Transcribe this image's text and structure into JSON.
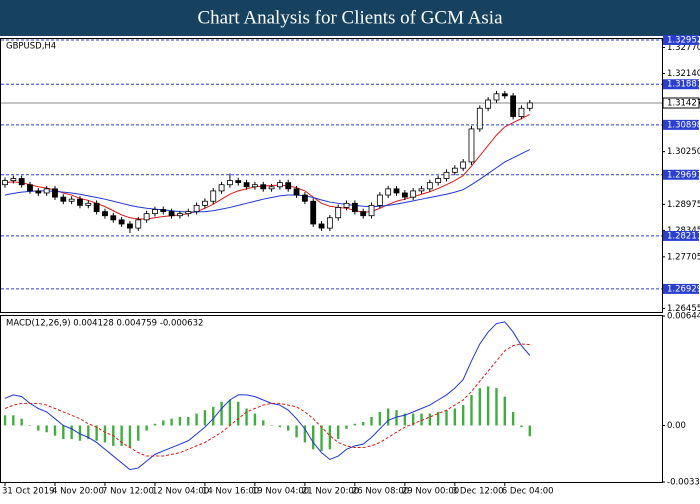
{
  "header": {
    "title": "Chart Analysis for Clients of GCM Asia"
  },
  "chart_data": [
    {
      "type": "candlestick",
      "label": "GBPUSD,H4",
      "categories": [
        "31 Oct 2019",
        null,
        null,
        null,
        null,
        null,
        "4 Nov 20:00",
        null,
        null,
        null,
        null,
        null,
        "7 Nov 12:00",
        null,
        null,
        null,
        null,
        null,
        "12 Nov 04:00",
        null,
        null,
        null,
        null,
        null,
        "14 Nov 16:00",
        null,
        null,
        null,
        null,
        null,
        "19 Nov 04:00",
        null,
        null,
        null,
        null,
        null,
        "21 Nov 20:00",
        null,
        null,
        null,
        null,
        null,
        "26 Nov 08:00",
        null,
        null,
        null,
        null,
        null,
        "29 Nov 00:00",
        null,
        null,
        null,
        null,
        null,
        "3 Dec 12:00",
        null,
        null,
        null,
        null,
        null,
        "6 Dec 04:00",
        null,
        null,
        null
      ],
      "open": [
        1.2945,
        1.2955,
        1.296,
        1.2945,
        1.293,
        1.2925,
        1.2935,
        1.2915,
        1.2905,
        1.291,
        1.2895,
        1.29,
        1.288,
        1.287,
        1.286,
        1.285,
        1.284,
        1.286,
        1.2875,
        1.2885,
        1.288,
        1.287,
        1.2875,
        1.288,
        1.2895,
        1.2905,
        1.293,
        1.2945,
        1.2955,
        1.295,
        1.294,
        1.2945,
        1.2935,
        1.294,
        1.295,
        1.2935,
        1.292,
        1.2905,
        1.285,
        1.284,
        1.2865,
        1.289,
        1.29,
        1.288,
        1.287,
        1.2895,
        1.292,
        1.2935,
        1.2925,
        1.2915,
        1.293,
        1.2935,
        1.295,
        1.296,
        1.2975,
        1.2985,
        1.3,
        1.308,
        1.313,
        1.315,
        1.3165,
        1.316,
        1.311,
        1.313
      ],
      "high": [
        1.2962,
        1.2967,
        1.2967,
        1.2952,
        1.2937,
        1.2942,
        1.2942,
        1.2922,
        1.2917,
        1.2917,
        1.2907,
        1.2907,
        1.2887,
        1.2877,
        1.2867,
        1.2857,
        1.2867,
        1.2882,
        1.2892,
        1.2892,
        1.2887,
        1.2882,
        1.2887,
        1.2902,
        1.2912,
        1.2937,
        1.2952,
        1.2972,
        1.2962,
        1.2957,
        1.2952,
        1.2952,
        1.2947,
        1.2957,
        1.2957,
        1.2942,
        1.2927,
        1.2912,
        1.2857,
        1.2872,
        1.2897,
        1.2907,
        1.2907,
        1.2887,
        1.2902,
        1.2927,
        1.2942,
        1.2942,
        1.2932,
        1.2937,
        1.2942,
        1.2957,
        1.2967,
        1.2982,
        1.2992,
        1.3007,
        1.3087,
        1.3137,
        1.3157,
        1.3172,
        1.3172,
        1.3167,
        1.3137,
        1.315
      ],
      "low": [
        1.2938,
        1.2948,
        1.2938,
        1.2923,
        1.2918,
        1.2918,
        1.2908,
        1.2898,
        1.2898,
        1.2888,
        1.2888,
        1.2873,
        1.2863,
        1.2853,
        1.2843,
        1.2828,
        1.2833,
        1.2853,
        1.2868,
        1.2873,
        1.2863,
        1.2863,
        1.2868,
        1.2873,
        1.2888,
        1.2898,
        1.2923,
        1.2938,
        1.2943,
        1.2933,
        1.2933,
        1.2928,
        1.2928,
        1.2933,
        1.2928,
        1.2913,
        1.2898,
        1.2843,
        1.2833,
        1.2833,
        1.2858,
        1.2883,
        1.2873,
        1.2863,
        1.2863,
        1.2888,
        1.2913,
        1.2918,
        1.2908,
        1.2908,
        1.2923,
        1.2928,
        1.2943,
        1.2953,
        1.2968,
        1.2978,
        1.2993,
        1.3073,
        1.3123,
        1.3143,
        1.3153,
        1.3103,
        1.3103,
        1.3123
      ],
      "close": [
        1.2955,
        1.296,
        1.2945,
        1.293,
        1.2925,
        1.2935,
        1.2915,
        1.2905,
        1.291,
        1.2895,
        1.29,
        1.288,
        1.287,
        1.286,
        1.285,
        1.284,
        1.286,
        1.2875,
        1.2885,
        1.288,
        1.287,
        1.2875,
        1.288,
        1.2895,
        1.2905,
        1.293,
        1.2945,
        1.2955,
        1.295,
        1.294,
        1.2945,
        1.2935,
        1.294,
        1.295,
        1.2935,
        1.292,
        1.2905,
        1.285,
        1.284,
        1.2865,
        1.289,
        1.29,
        1.288,
        1.287,
        1.2895,
        1.292,
        1.2935,
        1.2925,
        1.2915,
        1.293,
        1.2935,
        1.295,
        1.296,
        1.2975,
        1.2985,
        1.3,
        1.308,
        1.313,
        1.315,
        1.3165,
        1.316,
        1.311,
        1.313,
        1.3143
      ],
      "series": [
        {
          "color": "#e01818",
          "values": [
            1.295,
            1.2952,
            1.295,
            1.2945,
            1.294,
            1.2937,
            1.2932,
            1.2925,
            1.292,
            1.2912,
            1.2907,
            1.29,
            1.2892,
            1.2882,
            1.2872,
            1.2865,
            1.2862,
            1.2862,
            1.2865,
            1.2868,
            1.287,
            1.2872,
            1.2875,
            1.288,
            1.2888,
            1.2898,
            1.291,
            1.2922,
            1.293,
            1.2935,
            1.294,
            1.2942,
            1.2943,
            1.2944,
            1.2942,
            1.2938,
            1.293,
            1.2915,
            1.29,
            1.2893,
            1.289,
            1.2888,
            1.2883,
            1.2878,
            1.288,
            1.2888,
            1.2897,
            1.2905,
            1.291,
            1.2916,
            1.2922,
            1.2928,
            1.2936,
            1.2945,
            1.2955,
            1.2967,
            1.299,
            1.3015,
            1.304,
            1.3065,
            1.3085,
            1.3095,
            1.3105,
            1.3115
          ]
        },
        {
          "color": "#1f35d8",
          "values": [
            1.292,
            1.2924,
            1.2927,
            1.2929,
            1.293,
            1.293,
            1.2929,
            1.2927,
            1.2925,
            1.2922,
            1.2918,
            1.2914,
            1.291,
            1.2905,
            1.29,
            1.2895,
            1.2891,
            1.2888,
            1.2886,
            1.2884,
            1.2882,
            1.288,
            1.2879,
            1.2879,
            1.288,
            1.2882,
            1.2886,
            1.289,
            1.2895,
            1.29,
            1.2905,
            1.291,
            1.2914,
            1.2918,
            1.292,
            1.292,
            1.2918,
            1.2914,
            1.2908,
            1.2903,
            1.29,
            1.2897,
            1.2895,
            1.2893,
            1.2892,
            1.2893,
            1.2895,
            1.2898,
            1.2902,
            1.2906,
            1.291,
            1.2914,
            1.2918,
            1.2922,
            1.2927,
            1.2933,
            1.2945,
            1.2958,
            1.2972,
            1.2986,
            1.3,
            1.301,
            1.302,
            1.303
          ]
        }
      ],
      "ylim": [
        1.2637,
        1.33
      ],
      "yticks": [
        1.26455,
        1.27705,
        1.28345,
        1.28975,
        {
          "value": 1.3025,
          "label": "1.30250"
        },
        {
          "value": 1.3214,
          "label": "1.32140"
        },
        {
          "value": 1.3277,
          "label": "1.32770"
        }
      ],
      "levels": [
        1.32952,
        1.31881,
        1.30898,
        1.29691,
        1.28211,
        1.26929
      ],
      "level_color": "#2a3fd0",
      "current_price": 1.31427
    },
    {
      "type": "macd",
      "label": "MACD(12,26,9) 0.004128 0.004759 -0.000632",
      "histogram": {
        "color": "#3fae3f",
        "values": [
          0.0006,
          0.0006,
          0.0004,
          0.0,
          -0.0003,
          -0.0004,
          -0.0006,
          -0.0008,
          -0.0008,
          -0.0009,
          -0.0008,
          -0.0009,
          -0.001,
          -0.0012,
          -0.0012,
          -0.0013,
          -0.0009,
          -0.0003,
          0.0001,
          0.0003,
          0.0004,
          0.0005,
          0.0005,
          0.0007,
          0.0009,
          0.0011,
          0.0014,
          0.0015,
          0.0014,
          0.001,
          0.0007,
          0.0003,
          0.0,
          -0.0001,
          -0.0003,
          -0.0007,
          -0.001,
          -0.0014,
          -0.0015,
          -0.0014,
          -0.0008,
          -0.0002,
          0.0001,
          0.0002,
          0.0005,
          0.0008,
          0.001,
          0.0009,
          0.0007,
          0.0007,
          0.0007,
          0.0007,
          0.0008,
          0.0009,
          0.001,
          0.0012,
          0.0018,
          0.0022,
          0.0023,
          0.0022,
          0.0017,
          0.0008,
          -0.0001,
          -0.000632
        ]
      },
      "series": [
        {
          "color": "#1f35d8",
          "values": [
            0.0016,
            0.0018,
            0.0017,
            0.0013,
            0.001,
            0.0008,
            0.0004,
            0.0,
            -0.0002,
            -0.0005,
            -0.0007,
            -0.001,
            -0.0014,
            -0.0018,
            -0.0022,
            -0.0026,
            -0.0025,
            -0.0021,
            -0.0017,
            -0.0015,
            -0.0013,
            -0.0011,
            -0.0009,
            -0.0005,
            -0.0001,
            0.0004,
            0.001,
            0.0015,
            0.0018,
            0.0018,
            0.0017,
            0.0015,
            0.0013,
            0.0012,
            0.0009,
            0.0004,
            -0.0002,
            -0.001,
            -0.0016,
            -0.002,
            -0.0018,
            -0.0014,
            -0.0012,
            -0.0011,
            -0.0007,
            -0.0002,
            0.0003,
            0.0005,
            0.0006,
            0.0008,
            0.001,
            0.0012,
            0.0015,
            0.0018,
            0.0022,
            0.0027,
            0.0038,
            0.0048,
            0.0055,
            0.006,
            0.0061,
            0.0055,
            0.0047,
            0.004128
          ]
        },
        {
          "color": "#e01818",
          "dashed": true,
          "values": [
            0.001,
            0.0012,
            0.0013,
            0.0013,
            0.0013,
            0.0012,
            0.001,
            0.0008,
            0.0006,
            0.0004,
            0.0001,
            -0.0001,
            -0.0004,
            -0.0006,
            -0.001,
            -0.0013,
            -0.0016,
            -0.0018,
            -0.0018,
            -0.0018,
            -0.0017,
            -0.0016,
            -0.0014,
            -0.0012,
            -0.001,
            -0.0007,
            -0.0004,
            0.0,
            0.0004,
            0.0008,
            0.001,
            0.0012,
            0.0013,
            0.0013,
            0.0012,
            0.0011,
            0.0008,
            0.0004,
            -0.0001,
            -0.0006,
            -0.001,
            -0.0012,
            -0.0013,
            -0.0013,
            -0.0012,
            -0.001,
            -0.0007,
            -0.0004,
            -0.0001,
            0.0001,
            0.0003,
            0.0005,
            0.0007,
            0.0009,
            0.0012,
            0.0015,
            0.002,
            0.0026,
            0.0032,
            0.0038,
            0.0044,
            0.0047,
            0.0048,
            0.004759
          ]
        }
      ],
      "ylim": [
        -0.003328,
        0.006446
      ],
      "yticks": [
        -0.003328,
        {
          "value": 0,
          "label": "0.00"
        },
        0.006446
      ]
    }
  ]
}
